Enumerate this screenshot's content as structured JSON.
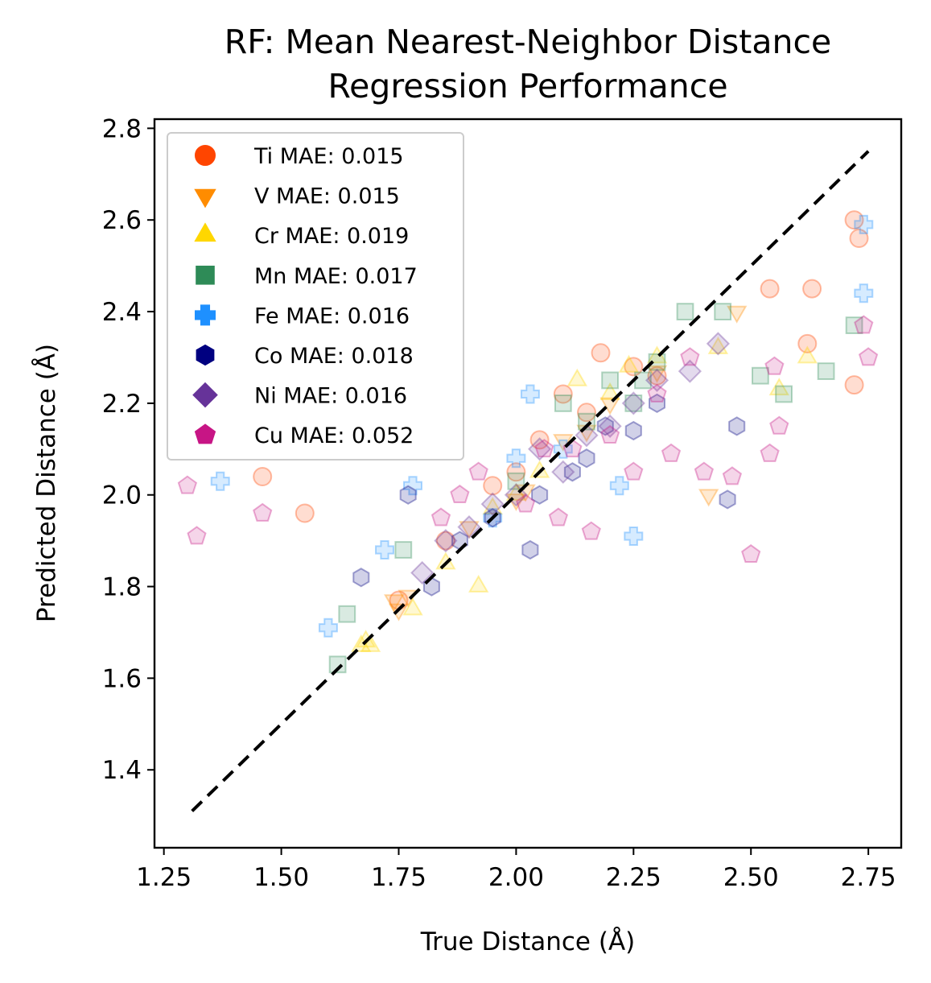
{
  "chart_data": {
    "type": "scatter",
    "title_lines": [
      "RF: Mean Nearest-Neighbor Distance",
      "Regression Performance"
    ],
    "xlabel": "True Distance (Å)",
    "ylabel": "Predicted Distance (Å)",
    "xlim": [
      1.23,
      2.82
    ],
    "ylim": [
      1.23,
      2.82
    ],
    "x_ticks": [
      1.25,
      1.5,
      1.75,
      2.0,
      2.25,
      2.5,
      2.75
    ],
    "x_tick_labels": [
      "1.25",
      "1.50",
      "1.75",
      "2.00",
      "2.25",
      "2.50",
      "2.75"
    ],
    "y_ticks": [
      1.4,
      1.6,
      1.8,
      2.0,
      2.2,
      2.4,
      2.6,
      2.8
    ],
    "y_tick_labels": [
      "1.4",
      "1.6",
      "1.8",
      "2.0",
      "2.2",
      "2.4",
      "2.6",
      "2.8"
    ],
    "grid": false,
    "legend_position": "upper-left",
    "reference_line": {
      "x": [
        1.31,
        2.75
      ],
      "y": [
        1.31,
        2.75
      ],
      "style": "dashed",
      "color": "#000000"
    },
    "series": [
      {
        "name": "Ti",
        "legend": "Ti MAE: 0.015",
        "marker": "circle",
        "color": "#ff4500",
        "points": [
          [
            1.46,
            2.04
          ],
          [
            1.55,
            1.96
          ],
          [
            2.18,
            2.31
          ],
          [
            2.54,
            2.45
          ],
          [
            2.63,
            2.45
          ],
          [
            2.62,
            2.33
          ],
          [
            2.72,
            2.24
          ],
          [
            2.73,
            2.56
          ],
          [
            2.72,
            2.6
          ],
          [
            2.1,
            2.22
          ],
          [
            2.25,
            2.28
          ],
          [
            1.95,
            2.02
          ],
          [
            2.05,
            2.12
          ],
          [
            2.15,
            2.18
          ],
          [
            1.85,
            1.9
          ],
          [
            1.75,
            1.77
          ],
          [
            2.3,
            2.26
          ],
          [
            2.0,
            2.05
          ]
        ]
      },
      {
        "name": "V",
        "legend": "V MAE: 0.015",
        "marker": "triangle-down",
        "color": "#ff8c00",
        "points": [
          [
            1.74,
            1.77
          ],
          [
            1.75,
            1.75
          ],
          [
            1.77,
            1.78
          ],
          [
            2.0,
            1.99
          ],
          [
            2.02,
            2.01
          ],
          [
            2.41,
            2.0
          ],
          [
            2.47,
            2.4
          ],
          [
            2.2,
            2.2
          ],
          [
            2.1,
            2.12
          ],
          [
            1.9,
            1.93
          ],
          [
            2.3,
            2.27
          ],
          [
            2.15,
            2.14
          ]
        ]
      },
      {
        "name": "Cr",
        "legend": "Cr MAE: 0.019",
        "marker": "triangle-up",
        "color": "#ffd700",
        "points": [
          [
            1.67,
            1.67
          ],
          [
            1.68,
            1.68
          ],
          [
            1.69,
            1.67
          ],
          [
            1.78,
            1.75
          ],
          [
            1.92,
            1.8
          ],
          [
            2.0,
            2.0
          ],
          [
            2.13,
            2.25
          ],
          [
            2.24,
            2.28
          ],
          [
            2.56,
            2.23
          ],
          [
            2.62,
            2.3
          ],
          [
            2.43,
            2.32
          ],
          [
            1.95,
            1.97
          ],
          [
            2.05,
            2.05
          ],
          [
            1.85,
            1.85
          ],
          [
            2.2,
            2.22
          ],
          [
            2.3,
            2.3
          ]
        ]
      },
      {
        "name": "Mn",
        "legend": "Mn MAE: 0.017",
        "marker": "square",
        "color": "#2e8b57",
        "points": [
          [
            1.62,
            1.63
          ],
          [
            1.64,
            1.74
          ],
          [
            1.76,
            1.88
          ],
          [
            2.2,
            2.25
          ],
          [
            2.27,
            2.25
          ],
          [
            2.36,
            2.4
          ],
          [
            2.44,
            2.4
          ],
          [
            2.52,
            2.26
          ],
          [
            2.57,
            2.22
          ],
          [
            2.66,
            2.27
          ],
          [
            2.72,
            2.37
          ],
          [
            2.1,
            2.2
          ],
          [
            2.15,
            2.16
          ],
          [
            2.0,
            2.03
          ],
          [
            2.25,
            2.2
          ],
          [
            2.3,
            2.29
          ]
        ]
      },
      {
        "name": "Fe",
        "legend": "Fe MAE: 0.016",
        "marker": "plus",
        "color": "#1e90ff",
        "points": [
          [
            1.37,
            2.03
          ],
          [
            1.6,
            1.71
          ],
          [
            1.72,
            1.88
          ],
          [
            1.78,
            2.02
          ],
          [
            2.03,
            2.22
          ],
          [
            2.22,
            2.02
          ],
          [
            2.25,
            1.91
          ],
          [
            2.74,
            2.44
          ],
          [
            2.74,
            2.59
          ],
          [
            1.95,
            1.95
          ],
          [
            2.1,
            2.1
          ],
          [
            2.0,
            2.08
          ]
        ]
      },
      {
        "name": "Co",
        "legend": "Co MAE: 0.018",
        "marker": "hexagon",
        "color": "#000080",
        "points": [
          [
            1.67,
            1.82
          ],
          [
            1.77,
            2.0
          ],
          [
            1.82,
            1.8
          ],
          [
            1.88,
            1.9
          ],
          [
            2.03,
            1.88
          ],
          [
            2.12,
            2.05
          ],
          [
            2.19,
            2.15
          ],
          [
            2.45,
            1.99
          ],
          [
            2.47,
            2.15
          ],
          [
            1.95,
            1.95
          ],
          [
            2.05,
            2.0
          ],
          [
            2.25,
            2.14
          ],
          [
            2.3,
            2.2
          ],
          [
            2.15,
            2.08
          ]
        ]
      },
      {
        "name": "Ni",
        "legend": "Ni MAE: 0.016",
        "marker": "diamond",
        "color": "#663399",
        "points": [
          [
            1.8,
            1.83
          ],
          [
            1.85,
            1.9
          ],
          [
            1.9,
            1.93
          ],
          [
            2.0,
            2.0
          ],
          [
            2.1,
            2.05
          ],
          [
            2.2,
            2.15
          ],
          [
            2.3,
            2.25
          ],
          [
            2.37,
            2.27
          ],
          [
            2.43,
            2.33
          ],
          [
            1.95,
            1.98
          ],
          [
            2.05,
            2.1
          ],
          [
            2.15,
            2.13
          ],
          [
            2.25,
            2.2
          ]
        ]
      },
      {
        "name": "Cu",
        "legend": "Cu MAE: 0.052",
        "marker": "pentagon",
        "color": "#c71585",
        "points": [
          [
            1.3,
            2.02
          ],
          [
            1.32,
            1.91
          ],
          [
            1.46,
            1.96
          ],
          [
            1.84,
            1.95
          ],
          [
            1.92,
            2.05
          ],
          [
            2.02,
            1.98
          ],
          [
            2.09,
            1.95
          ],
          [
            2.16,
            1.92
          ],
          [
            2.25,
            2.05
          ],
          [
            2.33,
            2.09
          ],
          [
            2.4,
            2.05
          ],
          [
            2.46,
            2.04
          ],
          [
            2.5,
            1.87
          ],
          [
            2.54,
            2.09
          ],
          [
            2.56,
            2.15
          ],
          [
            2.55,
            2.28
          ],
          [
            2.75,
            2.3
          ],
          [
            2.74,
            2.37
          ],
          [
            2.06,
            2.1
          ],
          [
            2.12,
            2.1
          ],
          [
            2.2,
            2.13
          ],
          [
            2.3,
            2.22
          ],
          [
            2.37,
            2.3
          ],
          [
            1.88,
            2.0
          ]
        ]
      }
    ]
  }
}
